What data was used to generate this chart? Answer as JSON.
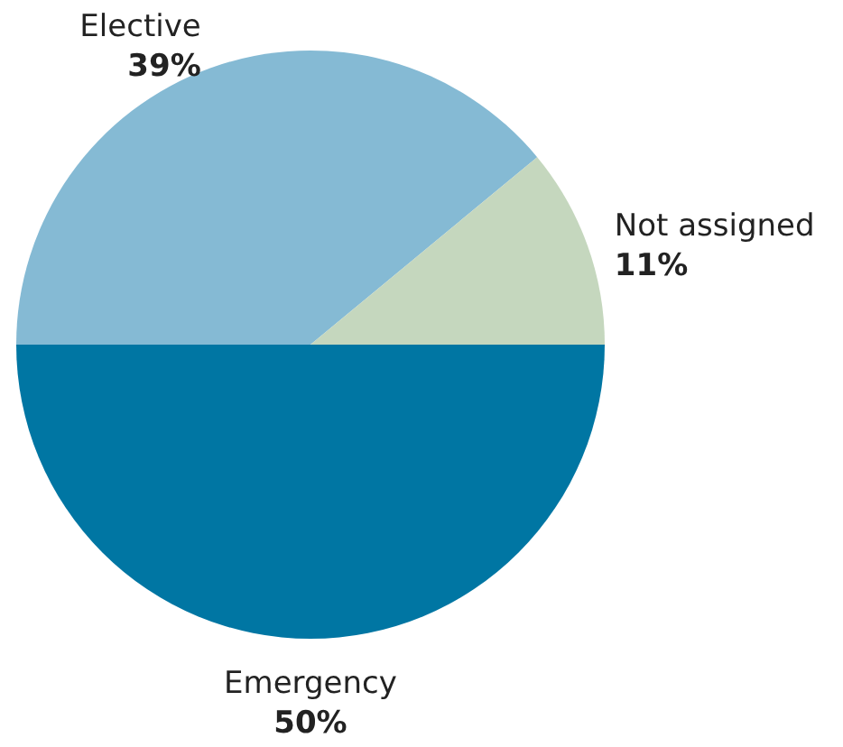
{
  "chart_data": {
    "type": "pie",
    "categories": [
      "Elective",
      "Not assigned",
      "Emergency"
    ],
    "values": [
      39,
      11,
      50
    ],
    "colors": [
      "#85bad4",
      "#c5d7be",
      "#0076a3"
    ],
    "value_labels": [
      "39%",
      "11%",
      "50%"
    ],
    "legend": false
  }
}
